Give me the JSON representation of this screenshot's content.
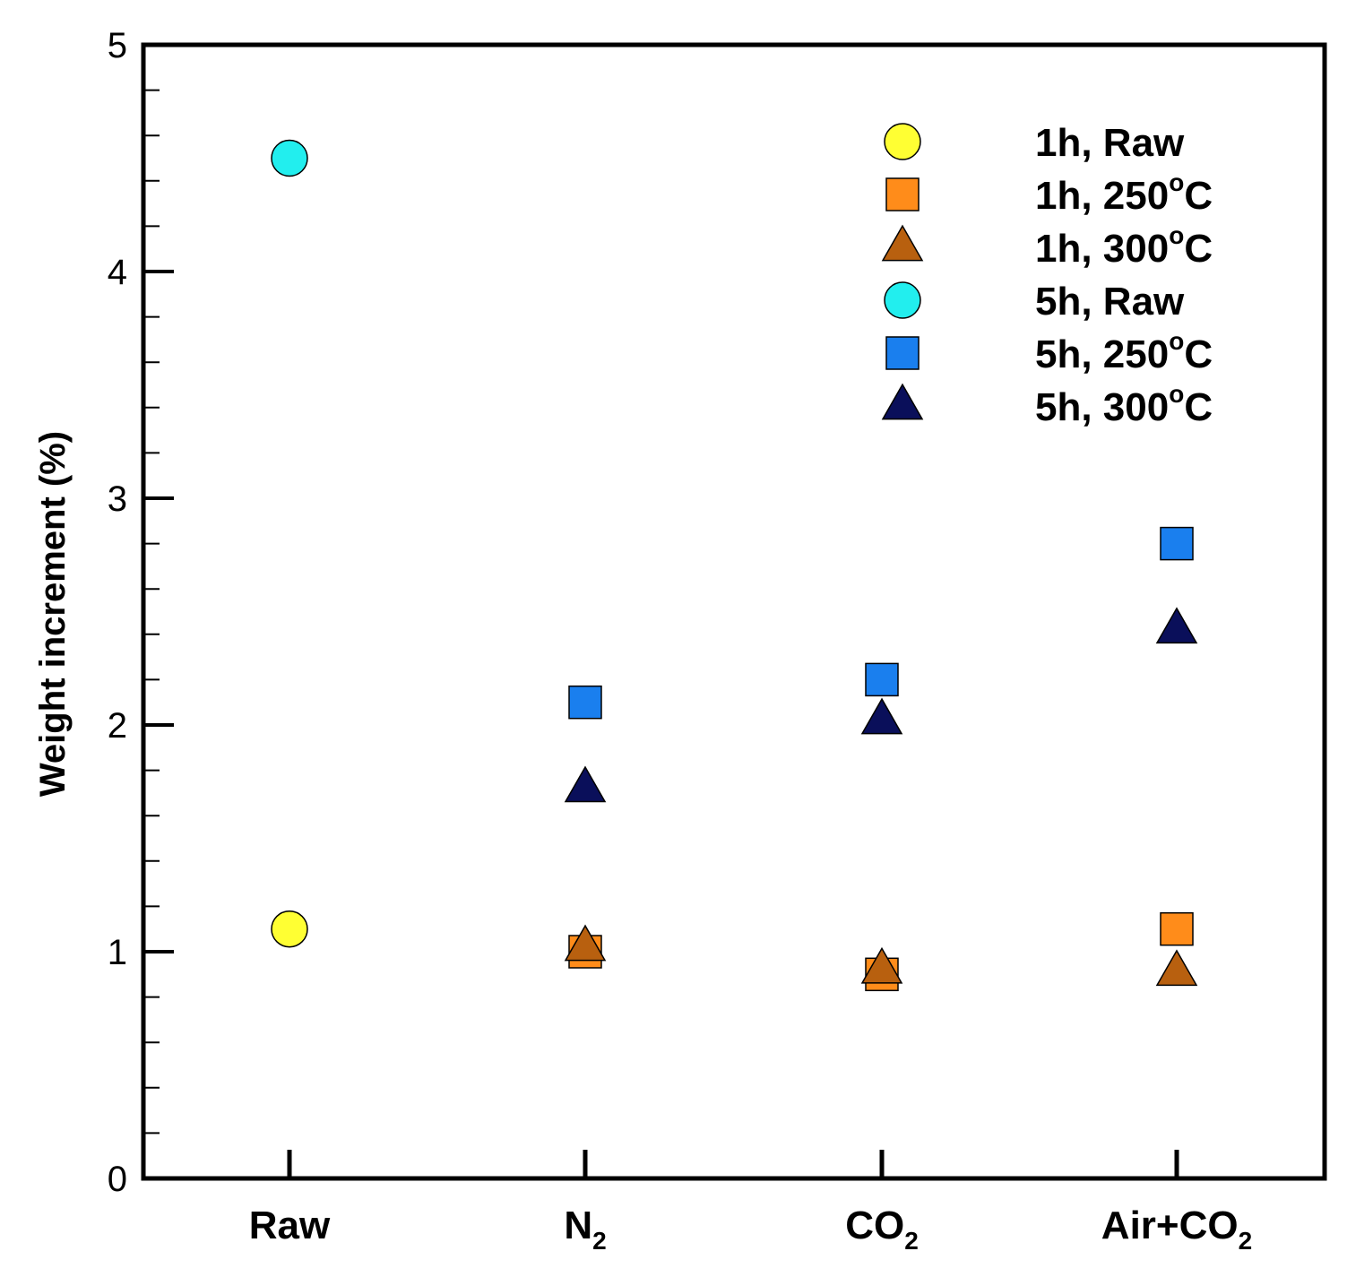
{
  "chart_data": {
    "type": "scatter",
    "title": "",
    "xlabel": "",
    "ylabel": "Weight increment (%)",
    "ylim": [
      0,
      5
    ],
    "yticks": [
      "0",
      "1",
      "2",
      "3",
      "4",
      "5"
    ],
    "categories": [
      {
        "main": "Raw",
        "sub": ""
      },
      {
        "main": "N",
        "sub": "2"
      },
      {
        "main": "CO",
        "sub": "2"
      },
      {
        "main": "Air+CO",
        "sub": "2"
      }
    ],
    "series": [
      {
        "name": "1h, Raw",
        "label_main": "1h, Raw",
        "label_sup": "",
        "label_tail": "",
        "marker": "circle",
        "color": "#ffff33",
        "size": 20,
        "values": [
          1.1,
          null,
          null,
          null
        ]
      },
      {
        "name": "1h, 250°C",
        "label_main": "1h, 250",
        "label_sup": "o",
        "label_tail": "C",
        "marker": "square",
        "color": "#ff8c1a",
        "size": 18,
        "values": [
          null,
          1.0,
          0.9,
          1.1
        ]
      },
      {
        "name": "1h, 300°C",
        "label_main": "1h, 300",
        "label_sup": "o",
        "label_tail": "C",
        "marker": "triangle",
        "color": "#b8600f",
        "size": 22,
        "values": [
          null,
          1.02,
          0.92,
          0.91
        ]
      },
      {
        "name": "5h, Raw",
        "label_main": "5h, Raw",
        "label_sup": "",
        "label_tail": "",
        "marker": "circle",
        "color": "#22eeee",
        "size": 20,
        "values": [
          4.5,
          null,
          null,
          null
        ]
      },
      {
        "name": "5h, 250°C",
        "label_main": "5h, 250",
        "label_sup": "o",
        "label_tail": "C",
        "marker": "square",
        "color": "#1a7fee",
        "size": 18,
        "values": [
          null,
          2.1,
          2.2,
          2.8
        ]
      },
      {
        "name": "5h, 300°C",
        "label_main": "5h, 300",
        "label_sup": "o",
        "label_tail": "C",
        "marker": "triangle",
        "color": "#0a0f5a",
        "size": 22,
        "values": [
          null,
          1.72,
          2.02,
          2.42
        ]
      }
    ],
    "legend_position": "top-right"
  }
}
